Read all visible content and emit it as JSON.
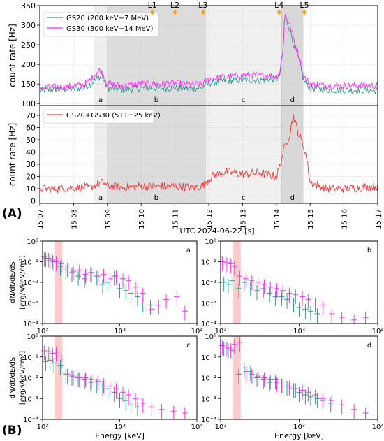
{
  "panel_labels": {
    "A": "(A)",
    "B": "(B)"
  },
  "colors": {
    "gs20": "#2a9d8f",
    "gs30": "#ff2bff",
    "sum": "#ff3030",
    "lmark": "#f5a623",
    "band": "#ffb3b3"
  },
  "top": {
    "ylabel": "count rate [Hz]",
    "ylim": [
      95,
      350
    ],
    "yticks": [
      "100",
      "150",
      "200",
      "250",
      "300",
      "350"
    ],
    "legend": [
      "GS20 (200 keV−7 MeV)",
      "GS30 (300 keV−14 MeV)"
    ],
    "markers": [
      {
        "label": "L1",
        "t": 3.33
      },
      {
        "label": "L2",
        "t": 4.0
      },
      {
        "label": "L3",
        "t": 4.83
      },
      {
        "label": "L4",
        "t": 7.08
      },
      {
        "label": "L5",
        "t": 7.83
      }
    ]
  },
  "bottom": {
    "ylabel": "count rate [Hz]",
    "ylim": [
      -2,
      78
    ],
    "yticks": [
      "0",
      "10",
      "20",
      "30",
      "40",
      "50",
      "60",
      "70"
    ],
    "legend": [
      "GS20+GS30 (511±25 keV)"
    ]
  },
  "intervals": [
    {
      "label": "a",
      "t0": 1.6,
      "t1": 2.0,
      "shade": "#eeeeee"
    },
    {
      "label": "b",
      "t0": 2.0,
      "t1": 4.9,
      "shade": "#dcdcdc"
    },
    {
      "label": "c",
      "t0": 4.9,
      "t1": 7.15,
      "shade": "#f0f0f0"
    },
    {
      "label": "d",
      "t0": 7.15,
      "t1": 7.8,
      "shade": "#d8d8d8"
    }
  ],
  "xaxis": {
    "ticks": [
      "15:07",
      "15:08",
      "15:09",
      "15:10",
      "15:11",
      "15:12",
      "15:13",
      "15:14",
      "15:15",
      "15:16",
      "15:17"
    ],
    "label": "UTC 2024-06-22 [s]"
  },
  "spectra": {
    "ylabel": "dN/dt/dE/dS",
    "ylabel2": "[erg/s/keV/cm²]",
    "xlabel": "Energy [keV]",
    "xticks": [
      "10²",
      "10³",
      "10⁴"
    ],
    "yticks": [
      "10⁻⁴",
      "10⁻³",
      "10⁻²",
      "10⁻¹",
      "10⁰"
    ],
    "panels": [
      "a",
      "b",
      "c",
      "d"
    ]
  },
  "chart_data": [
    {
      "type": "line",
      "title": "",
      "xlabel": "",
      "ylabel": "count rate [Hz]",
      "x_unit": "minutes after 15:07",
      "xlim": [
        0,
        10
      ],
      "ylim": [
        95,
        350
      ],
      "series": [
        {
          "name": "GS20 (200 keV−7 MeV)",
          "x": [
            0,
            0.5,
            1,
            1.3,
            1.5,
            1.65,
            1.75,
            1.85,
            2,
            2.5,
            3,
            3.5,
            4,
            4.5,
            4.8,
            5,
            5.5,
            6,
            6.5,
            7,
            7.1,
            7.2,
            7.25,
            7.3,
            7.4,
            7.5,
            7.6,
            7.7,
            7.8,
            8,
            8.5,
            9,
            9.5,
            10
          ],
          "y": [
            133,
            136,
            138,
            140,
            150,
            160,
            168,
            165,
            140,
            135,
            140,
            139,
            140,
            138,
            140,
            152,
            158,
            160,
            160,
            162,
            172,
            235,
            330,
            312,
            290,
            255,
            230,
            200,
            160,
            140,
            135,
            134,
            135,
            132
          ]
        },
        {
          "name": "GS30 (300 keV−14 MeV)",
          "x": [
            0,
            0.5,
            1,
            1.3,
            1.5,
            1.65,
            1.75,
            1.85,
            2,
            2.5,
            3,
            3.5,
            4,
            4.5,
            4.8,
            5,
            5.5,
            6,
            6.5,
            7,
            7.1,
            7.2,
            7.25,
            7.3,
            7.4,
            7.5,
            7.6,
            7.7,
            7.8,
            8,
            8.5,
            9,
            9.5,
            10
          ],
          "y": [
            140,
            142,
            145,
            148,
            160,
            175,
            185,
            178,
            150,
            145,
            150,
            150,
            152,
            148,
            150,
            162,
            168,
            172,
            172,
            170,
            180,
            240,
            328,
            320,
            300,
            270,
            240,
            210,
            170,
            150,
            146,
            145,
            147,
            145
          ]
        },
        {
          "name": "GS20+GS30 (511±25 keV)",
          "x": [
            0,
            0.5,
            1,
            1.5,
            1.7,
            1.9,
            2,
            2.5,
            3,
            3.5,
            4,
            4.5,
            4.8,
            4.9,
            5.1,
            5.5,
            6,
            6.5,
            7,
            7.1,
            7.2,
            7.3,
            7.4,
            7.5,
            7.6,
            7.7,
            7.8,
            7.9,
            8,
            8.5,
            9,
            9.5,
            10
          ],
          "y": [
            10,
            10,
            11,
            11,
            14,
            15,
            12,
            11,
            12,
            12,
            12,
            11,
            12,
            15,
            20,
            24,
            22,
            23,
            20,
            28,
            40,
            48,
            55,
            70,
            60,
            52,
            45,
            35,
            15,
            10,
            10,
            11,
            12
          ]
        }
      ],
      "intervals": [
        "a",
        "b",
        "c",
        "d"
      ],
      "markers": [
        "L1",
        "L2",
        "L3",
        "L4",
        "L5"
      ]
    },
    {
      "type": "scatter",
      "panel": "a",
      "xscale": "log",
      "yscale": "log",
      "xlim": [
        100,
        10000
      ],
      "ylim": [
        0.0001,
        1
      ],
      "xlabel": "Energy [keV]",
      "ylabel": "dN/dt/dE/dS [erg/s/keV/cm²]",
      "series": [
        {
          "color": "gs20",
          "x": [
            110,
            125,
            140,
            170,
            200,
            240,
            290,
            350,
            420,
            500,
            600,
            700,
            850,
            1000,
            1200,
            1400,
            1700,
            2000,
            2500
          ],
          "y": [
            0.15,
            0.12,
            0.1,
            0.06,
            0.04,
            0.03,
            0.02,
            0.015,
            0.03,
            0.02,
            0.008,
            0.01,
            0.02,
            0.005,
            0.004,
            0.003,
            0.002,
            0.001,
            0.0008
          ]
        },
        {
          "color": "gs30",
          "x": [
            105,
            120,
            135,
            150,
            175,
            210,
            250,
            300,
            360,
            430,
            520,
            620,
            750,
            900,
            1100,
            1300,
            1600,
            2000,
            2600,
            3200,
            4000,
            5500,
            7000
          ],
          "y": [
            0.17,
            0.15,
            0.12,
            0.1,
            0.08,
            0.05,
            0.035,
            0.04,
            0.025,
            0.03,
            0.02,
            0.025,
            0.015,
            0.022,
            0.015,
            0.012,
            0.006,
            0.003,
            0.0005,
            0.0008,
            0.0015,
            0.002,
            0.0004
          ]
        }
      ]
    },
    {
      "type": "scatter",
      "panel": "b",
      "xscale": "log",
      "yscale": "log",
      "xlim": [
        100,
        10000
      ],
      "ylim": [
        0.0001,
        1
      ],
      "series": [
        {
          "color": "gs20",
          "x": [
            110,
            125,
            140,
            170,
            200,
            240,
            290,
            350,
            420,
            500,
            600,
            700,
            850,
            1000,
            1200,
            1400,
            1700
          ],
          "y": [
            0.01,
            0.008,
            0.012,
            0.005,
            0.01,
            0.006,
            0.004,
            0.005,
            0.003,
            0.002,
            0.002,
            0.0015,
            0.001,
            0.0006,
            0.0005,
            0.0004,
            0.0003
          ]
        },
        {
          "color": "gs30",
          "x": [
            105,
            120,
            135,
            150,
            175,
            210,
            250,
            300,
            360,
            430,
            520,
            620,
            750,
            900,
            1100,
            1300,
            1600,
            2000,
            2600,
            3500,
            5000,
            7000
          ],
          "y": [
            0.1,
            0.09,
            0.08,
            0.06,
            0.02,
            0.015,
            0.012,
            0.01,
            0.008,
            0.006,
            0.005,
            0.004,
            0.003,
            0.0025,
            0.002,
            0.0015,
            0.001,
            0.0008,
            0.0003,
            0.0002,
            0.00015,
            0.0002
          ]
        }
      ]
    },
    {
      "type": "scatter",
      "panel": "c",
      "xscale": "log",
      "yscale": "log",
      "xlim": [
        100,
        10000
      ],
      "ylim": [
        0.0001,
        1
      ],
      "series": [
        {
          "color": "gs20",
          "x": [
            110,
            125,
            140,
            170,
            200,
            240,
            290,
            350,
            420,
            500,
            600,
            700,
            850,
            1000,
            1200,
            1400,
            1700
          ],
          "y": [
            0.06,
            0.07,
            0.05,
            0.04,
            0.015,
            0.012,
            0.01,
            0.008,
            0.006,
            0.005,
            0.004,
            0.003,
            0.002,
            0.001,
            0.0008,
            0.0005,
            0.0004
          ]
        },
        {
          "color": "gs30",
          "x": [
            105,
            120,
            135,
            150,
            175,
            210,
            250,
            300,
            360,
            430,
            520,
            620,
            750,
            900,
            1100,
            1300,
            1600,
            2000,
            2600,
            3500,
            5000,
            7000
          ],
          "y": [
            0.2,
            0.18,
            0.15,
            0.17,
            0.08,
            0.015,
            0.012,
            0.01,
            0.01,
            0.008,
            0.007,
            0.005,
            0.004,
            0.003,
            0.002,
            0.0015,
            0.001,
            0.0006,
            0.0004,
            0.0003,
            0.00025,
            0.0002
          ]
        }
      ]
    },
    {
      "type": "scatter",
      "panel": "d",
      "xscale": "log",
      "yscale": "log",
      "xlim": [
        100,
        10000
      ],
      "ylim": [
        0.0001,
        1
      ],
      "series": [
        {
          "color": "gs20",
          "x": [
            110,
            125,
            140,
            170,
            200,
            240,
            290,
            350,
            420,
            500,
            600,
            700,
            850,
            1000,
            1200,
            1400,
            1700,
            2000,
            2500
          ],
          "y": [
            0.3,
            0.25,
            0.2,
            0.015,
            0.03,
            0.02,
            0.01,
            0.008,
            0.006,
            0.008,
            0.005,
            0.004,
            0.003,
            0.002,
            0.0015,
            0.0012,
            0.001,
            0.0008,
            0.0006
          ]
        },
        {
          "color": "gs30",
          "x": [
            105,
            120,
            135,
            150,
            175,
            210,
            250,
            300,
            360,
            430,
            520,
            620,
            750,
            900,
            1100,
            1300,
            1600,
            2000,
            2600,
            3500,
            5000,
            7000
          ],
          "y": [
            0.35,
            0.3,
            0.25,
            0.4,
            0.5,
            0.02,
            0.015,
            0.012,
            0.01,
            0.008,
            0.006,
            0.005,
            0.004,
            0.003,
            0.0025,
            0.002,
            0.0015,
            0.001,
            0.0008,
            0.0005,
            0.0003,
            0.0002
          ]
        }
      ]
    }
  ]
}
